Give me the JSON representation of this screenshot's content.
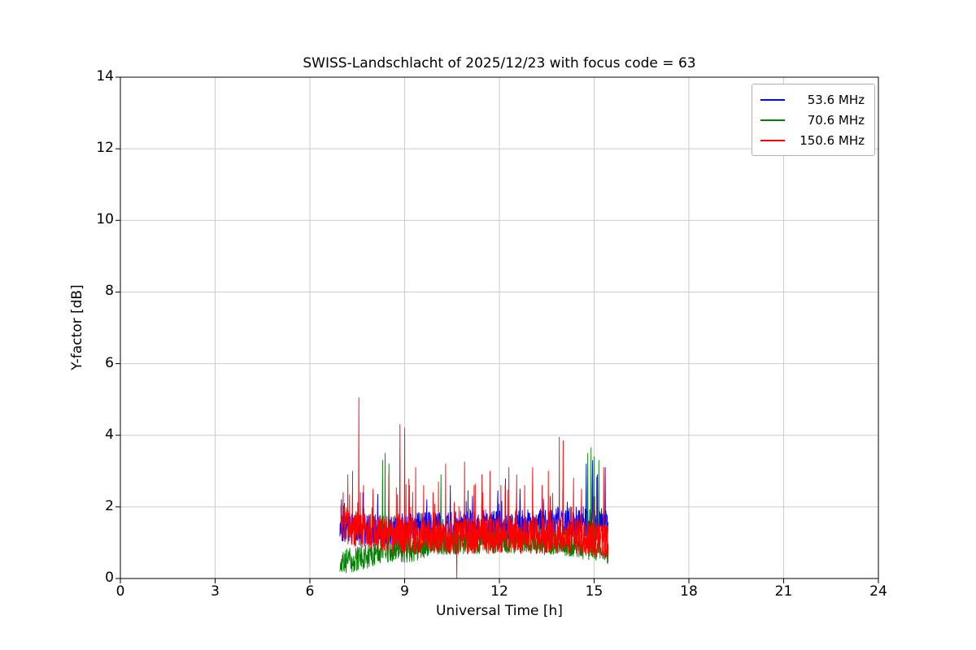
{
  "page": {
    "background": "#ffffff"
  },
  "chart_data": {
    "type": "line",
    "title": "SWISS-Landschlacht of 2025/12/23 with focus code = 63",
    "xlabel": "Universal Time [h]",
    "ylabel": "Y-factor [dB]",
    "xlim": [
      0,
      24
    ],
    "ylim": [
      0,
      14
    ],
    "xticks": [
      0,
      3,
      6,
      9,
      12,
      15,
      18,
      21,
      24
    ],
    "yticks": [
      0,
      2,
      4,
      6,
      8,
      10,
      12,
      14
    ],
    "grid": true,
    "grid_color": "#cccccc",
    "axis_color": "#000000",
    "legend_position": "upper right",
    "data_note": "Noisy Y-factor time series recorded between ~7.0 h and ~15.45 h UT; baseline ~1-1.5 dB with narrow spikes; generated from the envelope/spike parameters below",
    "series": [
      {
        "name": "53.6 MHz",
        "color": "#0000ff",
        "x_start": 6.95,
        "x_end": 15.45,
        "step": 0.008,
        "seed": 101,
        "noise": 0.45,
        "spike_prob": 0.02,
        "spike_max": 1.0,
        "base_points": [
          [
            6.95,
            1.5
          ],
          [
            7.5,
            1.3
          ],
          [
            9.0,
            1.4
          ],
          [
            11.0,
            1.45
          ],
          [
            13.0,
            1.5
          ],
          [
            14.5,
            1.6
          ],
          [
            15.45,
            1.5
          ]
        ],
        "major_spikes": [
          [
            7.0,
            2.2
          ],
          [
            8.15,
            2.35
          ],
          [
            9.7,
            2.2
          ],
          [
            10.45,
            2.6
          ],
          [
            11.15,
            2.3
          ],
          [
            11.95,
            2.45
          ],
          [
            12.65,
            2.5
          ],
          [
            13.4,
            2.1
          ],
          [
            14.75,
            3.2
          ],
          [
            14.95,
            3.3
          ],
          [
            15.1,
            2.9
          ],
          [
            15.35,
            3.1
          ]
        ]
      },
      {
        "name": "70.6 MHz",
        "color": "#008000",
        "x_start": 6.95,
        "x_end": 15.45,
        "step": 0.008,
        "seed": 202,
        "noise": 0.35,
        "spike_prob": 0.015,
        "spike_max": 0.8,
        "base_points": [
          [
            6.95,
            0.45
          ],
          [
            7.6,
            0.55
          ],
          [
            8.3,
            0.8
          ],
          [
            9.2,
            0.8
          ],
          [
            10.0,
            1.0
          ],
          [
            12.0,
            1.05
          ],
          [
            14.0,
            1.0
          ],
          [
            15.45,
            0.75
          ]
        ],
        "major_spikes": [
          [
            8.3,
            3.3
          ],
          [
            8.38,
            3.5
          ],
          [
            8.5,
            3.2
          ],
          [
            10.15,
            2.9
          ],
          [
            14.8,
            3.5
          ],
          [
            14.9,
            3.65
          ],
          [
            15.0,
            3.4
          ],
          [
            15.15,
            3.3
          ]
        ]
      },
      {
        "name": "150.6 MHz",
        "color": "#ff0000",
        "x_start": 6.98,
        "x_end": 15.45,
        "step": 0.006,
        "seed": 303,
        "noise": 0.5,
        "spike_prob": 0.05,
        "spike_max": 1.3,
        "base_points": [
          [
            6.98,
            1.6
          ],
          [
            7.3,
            1.4
          ],
          [
            8.0,
            1.3
          ],
          [
            9.0,
            1.2
          ],
          [
            10.0,
            1.15
          ],
          [
            12.0,
            1.2
          ],
          [
            14.0,
            1.2
          ],
          [
            15.0,
            1.1
          ],
          [
            15.45,
            1.0
          ]
        ],
        "major_spikes": [
          [
            7.05,
            2.4
          ],
          [
            7.2,
            2.9
          ],
          [
            7.35,
            3.0
          ],
          [
            7.55,
            5.05
          ],
          [
            7.7,
            2.6
          ],
          [
            8.0,
            2.5
          ],
          [
            8.5,
            2.9
          ],
          [
            8.85,
            4.3
          ],
          [
            9.0,
            4.2
          ],
          [
            9.15,
            2.6
          ],
          [
            9.35,
            3.1
          ],
          [
            9.6,
            2.6
          ],
          [
            9.9,
            2.4
          ],
          [
            10.3,
            3.2
          ],
          [
            10.65,
            0.02
          ],
          [
            10.9,
            3.25
          ],
          [
            11.2,
            2.6
          ],
          [
            11.45,
            2.9
          ],
          [
            11.7,
            3.0
          ],
          [
            12.05,
            2.6
          ],
          [
            12.3,
            3.1
          ],
          [
            12.55,
            2.9
          ],
          [
            12.8,
            2.6
          ],
          [
            13.05,
            3.1
          ],
          [
            13.35,
            2.6
          ],
          [
            13.55,
            3.0
          ],
          [
            13.9,
            3.95
          ],
          [
            14.02,
            3.85
          ],
          [
            14.35,
            2.8
          ],
          [
            14.6,
            2.5
          ],
          [
            15.3,
            3.1
          ]
        ]
      }
    ]
  }
}
